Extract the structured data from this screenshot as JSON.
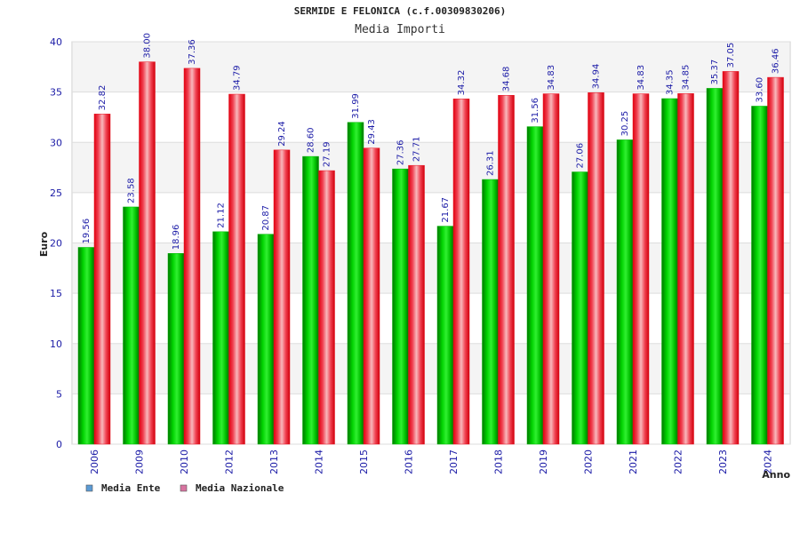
{
  "chart_data": {
    "type": "bar",
    "title": "SERMIDE E FELONICA (c.f.00309830206)",
    "subtitle": "Media Importi",
    "xlabel": "Anno",
    "ylabel": "Euro",
    "ylim": [
      0,
      40
    ],
    "yticks": [
      0,
      5,
      10,
      15,
      20,
      25,
      30,
      35,
      40
    ],
    "grid": true,
    "legend_position": "bottom-left",
    "categories": [
      "2006",
      "2009",
      "2010",
      "2012",
      "2013",
      "2014",
      "2015",
      "2016",
      "2017",
      "2018",
      "2019",
      "2020",
      "2021",
      "2022",
      "2023",
      "2024"
    ],
    "series": [
      {
        "name": "Media Ente",
        "color": "#00b400",
        "legend_color": "#5b9bd5",
        "values": [
          19.56,
          23.58,
          18.96,
          21.12,
          20.87,
          28.6,
          31.99,
          27.36,
          21.67,
          26.31,
          31.56,
          27.06,
          30.25,
          34.35,
          35.37,
          33.6
        ],
        "labels": [
          "19.56",
          "23.58",
          "18.96",
          "21.12",
          "20.87",
          "28.60",
          "31.99",
          "27.36",
          "21.67",
          "26.31",
          "31.56",
          "27.06",
          "30.25",
          "34.35",
          "35.37",
          "33.60"
        ]
      },
      {
        "name": "Media Nazionale",
        "color": "#e8101e",
        "legend_color": "#d873a0",
        "values": [
          32.82,
          38.0,
          37.36,
          34.79,
          29.24,
          27.19,
          29.43,
          27.71,
          34.32,
          34.68,
          34.83,
          34.94,
          34.83,
          34.85,
          37.05,
          36.46
        ],
        "labels": [
          "32.82",
          "38.00",
          "37.36",
          "34.79",
          "29.24",
          "27.19",
          "29.43",
          "27.71",
          "34.32",
          "34.68",
          "34.83",
          "34.94",
          "34.83",
          "34.85",
          "37.05",
          "36.46"
        ]
      }
    ]
  }
}
